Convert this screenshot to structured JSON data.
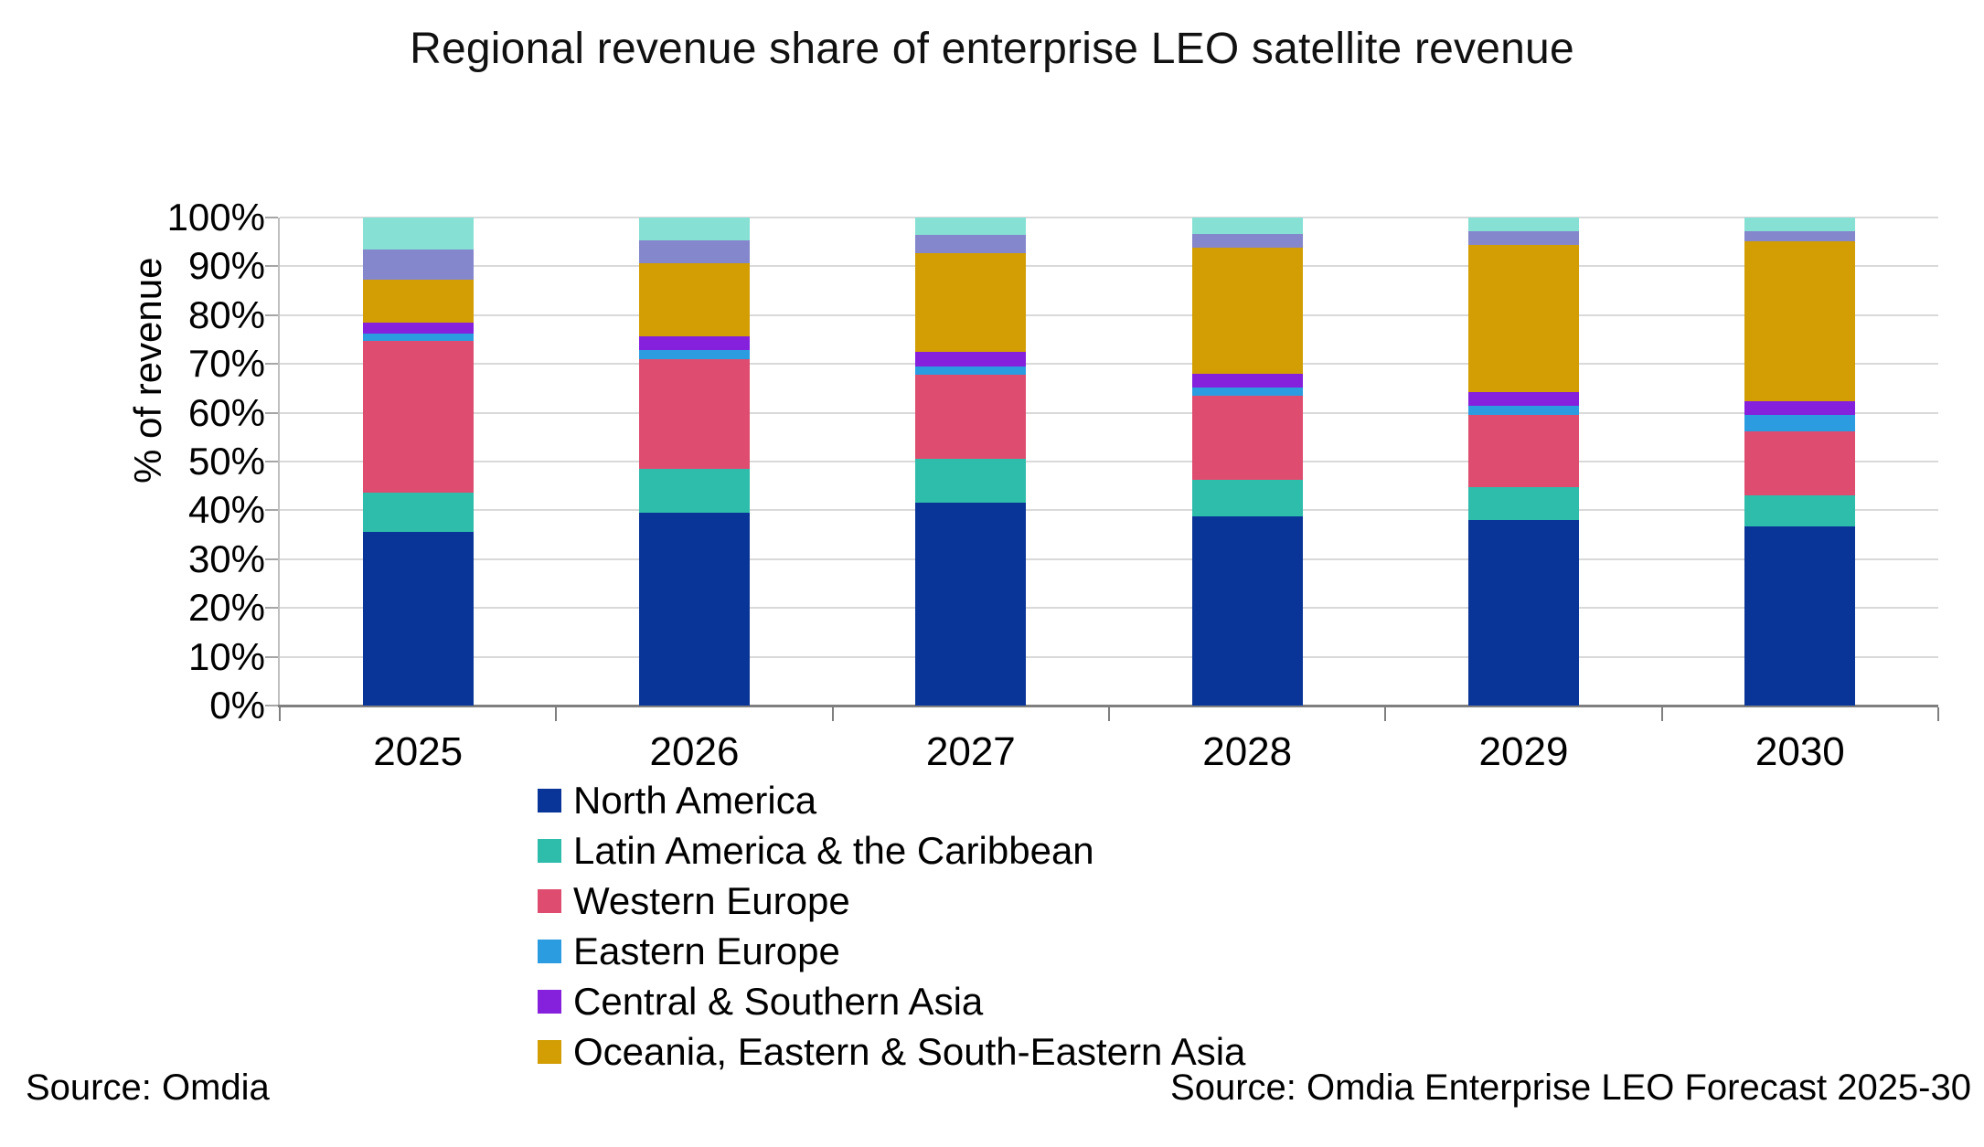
{
  "title": "Regional revenue share of enterprise LEO satellite revenue",
  "y_axis": {
    "label": "% of revenue",
    "ticks": [
      "0%",
      "10%",
      "20%",
      "30%",
      "40%",
      "50%",
      "60%",
      "70%",
      "80%",
      "90%",
      "100%"
    ]
  },
  "footer": {
    "source_left": "Source: Omdia",
    "source_right": "Source: Omdia Enterprise LEO Forecast 2025-30"
  },
  "chart_data": {
    "type": "bar",
    "stacked": true,
    "title": "Regional revenue share of enterprise LEO satellite revenue",
    "xlabel": "",
    "ylabel": "% of revenue",
    "ylim": [
      0,
      100
    ],
    "grid": true,
    "legend_position": "bottom-left",
    "categories": [
      "2025",
      "2026",
      "2027",
      "2028",
      "2029",
      "2030"
    ],
    "series": [
      {
        "name": "North America",
        "color": "#0a3598",
        "in_legend": true,
        "values": [
          35.5,
          39.5,
          41.5,
          38.8,
          38.0,
          36.7
        ]
      },
      {
        "name": "Latin America & the Caribbean",
        "color": "#2ebcab",
        "in_legend": true,
        "values": [
          8.2,
          9.0,
          9.0,
          7.5,
          6.8,
          6.4
        ]
      },
      {
        "name": "Western Europe",
        "color": "#de4d70",
        "in_legend": true,
        "values": [
          31.1,
          22.5,
          17.3,
          17.2,
          14.7,
          13.1
        ]
      },
      {
        "name": "Eastern Europe",
        "color": "#2b9ce0",
        "in_legend": true,
        "values": [
          1.5,
          1.8,
          1.6,
          1.7,
          2.0,
          3.4
        ]
      },
      {
        "name": "Central & Southern Asia",
        "color": "#8520dc",
        "in_legend": true,
        "values": [
          2.2,
          2.9,
          3.1,
          2.7,
          2.7,
          2.8
        ]
      },
      {
        "name": "Oceania, Eastern & South-Eastern Asia",
        "color": "#d29e03",
        "in_legend": true,
        "values": [
          8.8,
          15.0,
          20.2,
          26.0,
          30.2,
          32.8
        ]
      },
      {
        "name": "",
        "note": "segment rendered but not present in visible legend",
        "color": "#8487cb",
        "in_legend": false,
        "values": [
          6.2,
          4.7,
          3.7,
          2.8,
          2.8,
          2.0
        ]
      },
      {
        "name": "",
        "note": "segment rendered but not present in visible legend",
        "color": "#86e0d4",
        "in_legend": false,
        "values": [
          6.5,
          4.6,
          3.6,
          3.3,
          2.8,
          2.8
        ]
      }
    ]
  }
}
